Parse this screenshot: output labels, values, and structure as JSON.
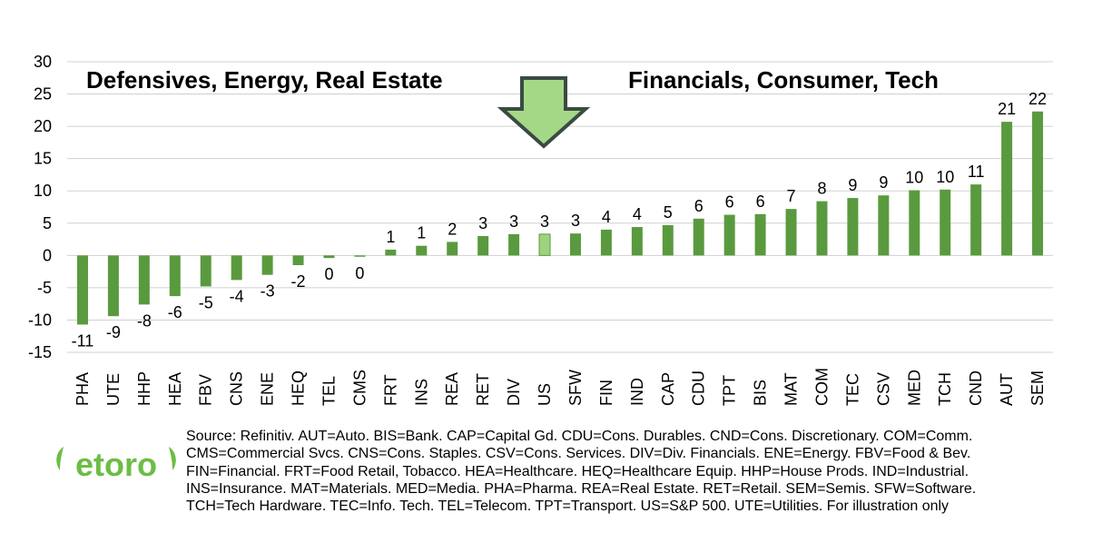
{
  "chart_data": {
    "type": "bar",
    "title": "",
    "xlabel": "",
    "ylabel": "",
    "ylim": [
      -15,
      30
    ],
    "yticks": [
      30,
      25,
      20,
      15,
      10,
      5,
      0,
      -5,
      -10,
      -15
    ],
    "grid": true,
    "categories": [
      "PHA",
      "UTE",
      "HHP",
      "HEA",
      "FBV",
      "CNS",
      "ENE",
      "HEQ",
      "TEL",
      "CMS",
      "FRT",
      "INS",
      "REA",
      "RET",
      "DIV",
      "US",
      "SFW",
      "FIN",
      "IND",
      "CAP",
      "CDU",
      "TPT",
      "BIS",
      "MAT",
      "COM",
      "TEC",
      "CSV",
      "MED",
      "TCH",
      "CND",
      "AUT",
      "SEM"
    ],
    "values": [
      -10.7,
      -9.4,
      -7.6,
      -6.3,
      -4.8,
      -3.8,
      -3.0,
      -1.5,
      -0.4,
      -0.2,
      0.9,
      1.5,
      2.1,
      3.0,
      3.3,
      3.3,
      3.4,
      4.0,
      4.4,
      4.7,
      5.7,
      6.3,
      6.4,
      7.2,
      8.4,
      8.9,
      9.3,
      10.1,
      10.2,
      11.0,
      20.7,
      22.3
    ],
    "data_labels": [
      "-11",
      "-9",
      "-8",
      "-6",
      "-5",
      "-4",
      "-3",
      "-2",
      "0",
      "0",
      "1",
      "1",
      "2",
      "3",
      "3",
      "3",
      "3",
      "4",
      "4",
      "5",
      "6",
      "6",
      "6",
      "7",
      "8",
      "9",
      "9",
      "10",
      "10",
      "11",
      "21",
      "22"
    ],
    "highlight_category": "US",
    "annotations": {
      "left": "Defensives, Energy, Real Estate",
      "right": "Financials, Consumer, Tech"
    }
  },
  "colors": {
    "bar": "#5a9a3e",
    "highlight_bar": "#9fd27f",
    "arrow_fill": "#a5d886",
    "arrow_stroke": "#3a4a44",
    "grid": "#d0d0d0",
    "logo_green": "#6cbd45"
  },
  "logo": {
    "text": "etoro"
  },
  "source_lines": [
    "Source: Refinitiv. AUT=Auto. BIS=Bank. CAP=Capital Gd. CDU=Cons. Durables. CND=Cons. Discretionary. COM=Comm.",
    "CMS=Commercial Svcs. CNS=Cons. Staples. CSV=Cons. Services. DIV=Div. Financials. ENE=Energy. FBV=Food & Bev.",
    "FIN=Financial. FRT=Food Retail, Tobacco. HEA=Healthcare. HEQ=Healthcare Equip. HHP=House Prods. IND=Industrial.",
    "INS=Insurance. MAT=Materials. MED=Media. PHA=Pharma. REA=Real Estate. RET=Retail. SEM=Semis. SFW=Software.",
    "TCH=Tech Hardware. TEC=Info. Tech. TEL=Telecom. TPT=Transport. US=S&P 500. UTE=Utilities.  For illustration only"
  ]
}
